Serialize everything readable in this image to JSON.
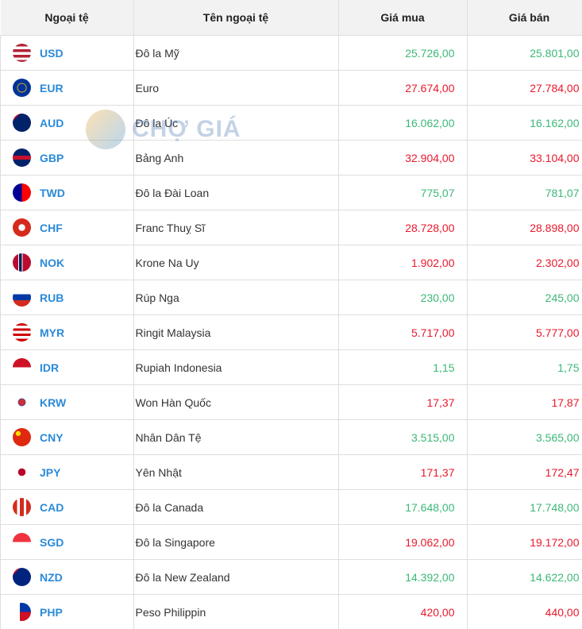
{
  "headers": [
    "Ngoại tệ",
    "Tên ngoại tệ",
    "Giá mua",
    "Giá bán"
  ],
  "watermark": "CHỢ GIÁ",
  "colors": {
    "up": "#3cb878",
    "down": "#e8192c",
    "code": "#2b8ad8"
  },
  "rows": [
    {
      "code": "USD",
      "name": "Đô la Mỹ",
      "buy": "25.726,00",
      "sell": "25.801,00",
      "trend": "up",
      "flag": "linear-gradient(#b22234 0 15%,#fff 15% 30%,#b22234 30% 45%,#fff 45% 60%,#b22234 60% 75%,#fff 75% 90%,#b22234 90%)"
    },
    {
      "code": "EUR",
      "name": "Euro",
      "buy": "27.674,00",
      "sell": "27.784,00",
      "trend": "down",
      "flag": "radial-gradient(circle,#003399 30%,#ffcc00 32%,#003399 40%)"
    },
    {
      "code": "AUD",
      "name": "Đô la Úc",
      "buy": "16.062,00",
      "sell": "16.162,00",
      "trend": "up",
      "flag": "linear-gradient(135deg,#c8102e 0 20%,#012169 20%)"
    },
    {
      "code": "GBP",
      "name": "Bảng Anh",
      "buy": "32.904,00",
      "sell": "33.104,00",
      "trend": "down",
      "flag": "linear-gradient(#012169 0 40%,#c8102e 40% 60%,#012169 60%)"
    },
    {
      "code": "TWD",
      "name": "Đô la Đài Loan",
      "buy": "775,07",
      "sell": "781,07",
      "trend": "up",
      "flag": "linear-gradient(90deg,#000095 0 50%,#fe0000 50%)"
    },
    {
      "code": "CHF",
      "name": "Franc Thuỵ Sĩ",
      "buy": "28.728,00",
      "sell": "28.898,00",
      "trend": "down",
      "flag": "radial-gradient(circle,#fff 25%,#d52b1e 27%)"
    },
    {
      "code": "NOK",
      "name": "Krone Na Uy",
      "buy": "1.902,00",
      "sell": "2.302,00",
      "trend": "down",
      "flag": "linear-gradient(90deg,#ba0c2f 0 30%,#fff 30% 35%,#00205b 35% 50%,#fff 50% 55%,#ba0c2f 55%)"
    },
    {
      "code": "RUB",
      "name": "Rúp Nga",
      "buy": "230,00",
      "sell": "245,00",
      "trend": "up",
      "flag": "linear-gradient(#fff 0 33%,#0039a6 33% 66%,#d52b1e 66%)"
    },
    {
      "code": "MYR",
      "name": "Ringit Malaysia",
      "buy": "5.717,00",
      "sell": "5.777,00",
      "trend": "down",
      "flag": "linear-gradient(#cc0001 0 14%,#fff 14% 28%,#cc0001 28% 42%,#fff 42% 56%,#cc0001 56% 70%,#fff 70% 84%,#cc0001 84%)"
    },
    {
      "code": "IDR",
      "name": "Rupiah Indonesia",
      "buy": "1,15",
      "sell": "1,75",
      "trend": "up",
      "flag": "linear-gradient(#ce1126 0 50%,#fff 50%)"
    },
    {
      "code": "KRW",
      "name": "Won Hàn Quốc",
      "buy": "17,37",
      "sell": "17,87",
      "trend": "down",
      "flag": "radial-gradient(circle,#cd2e3a 25%,#0047a0 28%,#fff 32%)"
    },
    {
      "code": "CNY",
      "name": "Nhân Dân Tệ",
      "buy": "3.515,00",
      "sell": "3.565,00",
      "trend": "up",
      "flag": "radial-gradient(circle at 30% 30%,#ffde00 12%,#de2910 15%)"
    },
    {
      "code": "JPY",
      "name": "Yên Nhật",
      "buy": "171,37",
      "sell": "172,47",
      "trend": "down",
      "flag": "radial-gradient(circle,#bc002d 28%,#fff 30%)"
    },
    {
      "code": "CAD",
      "name": "Đô la Canada",
      "buy": "17.648,00",
      "sell": "17.748,00",
      "trend": "up",
      "flag": "linear-gradient(90deg,#d52b1e 0 25%,#fff 25% 40%,#d52b1e 40% 60%,#fff 60% 75%,#d52b1e 75%)"
    },
    {
      "code": "SGD",
      "name": "Đô la Singapore",
      "buy": "19.062,00",
      "sell": "19.172,00",
      "trend": "down",
      "flag": "linear-gradient(#ef3340 0 50%,#fff 50%)"
    },
    {
      "code": "NZD",
      "name": "Đô la New Zealand",
      "buy": "14.392,00",
      "sell": "14.622,00",
      "trend": "up",
      "flag": "linear-gradient(135deg,#c8102e 0 20%,#00247d 20%)"
    },
    {
      "code": "PHP",
      "name": "Peso Philippin",
      "buy": "420,00",
      "sell": "440,00",
      "trend": "down",
      "flag": "linear-gradient(90deg,#fff 0 40%,transparent 40%),linear-gradient(#0038a8 0 50%,#ce1126 50%)"
    }
  ]
}
